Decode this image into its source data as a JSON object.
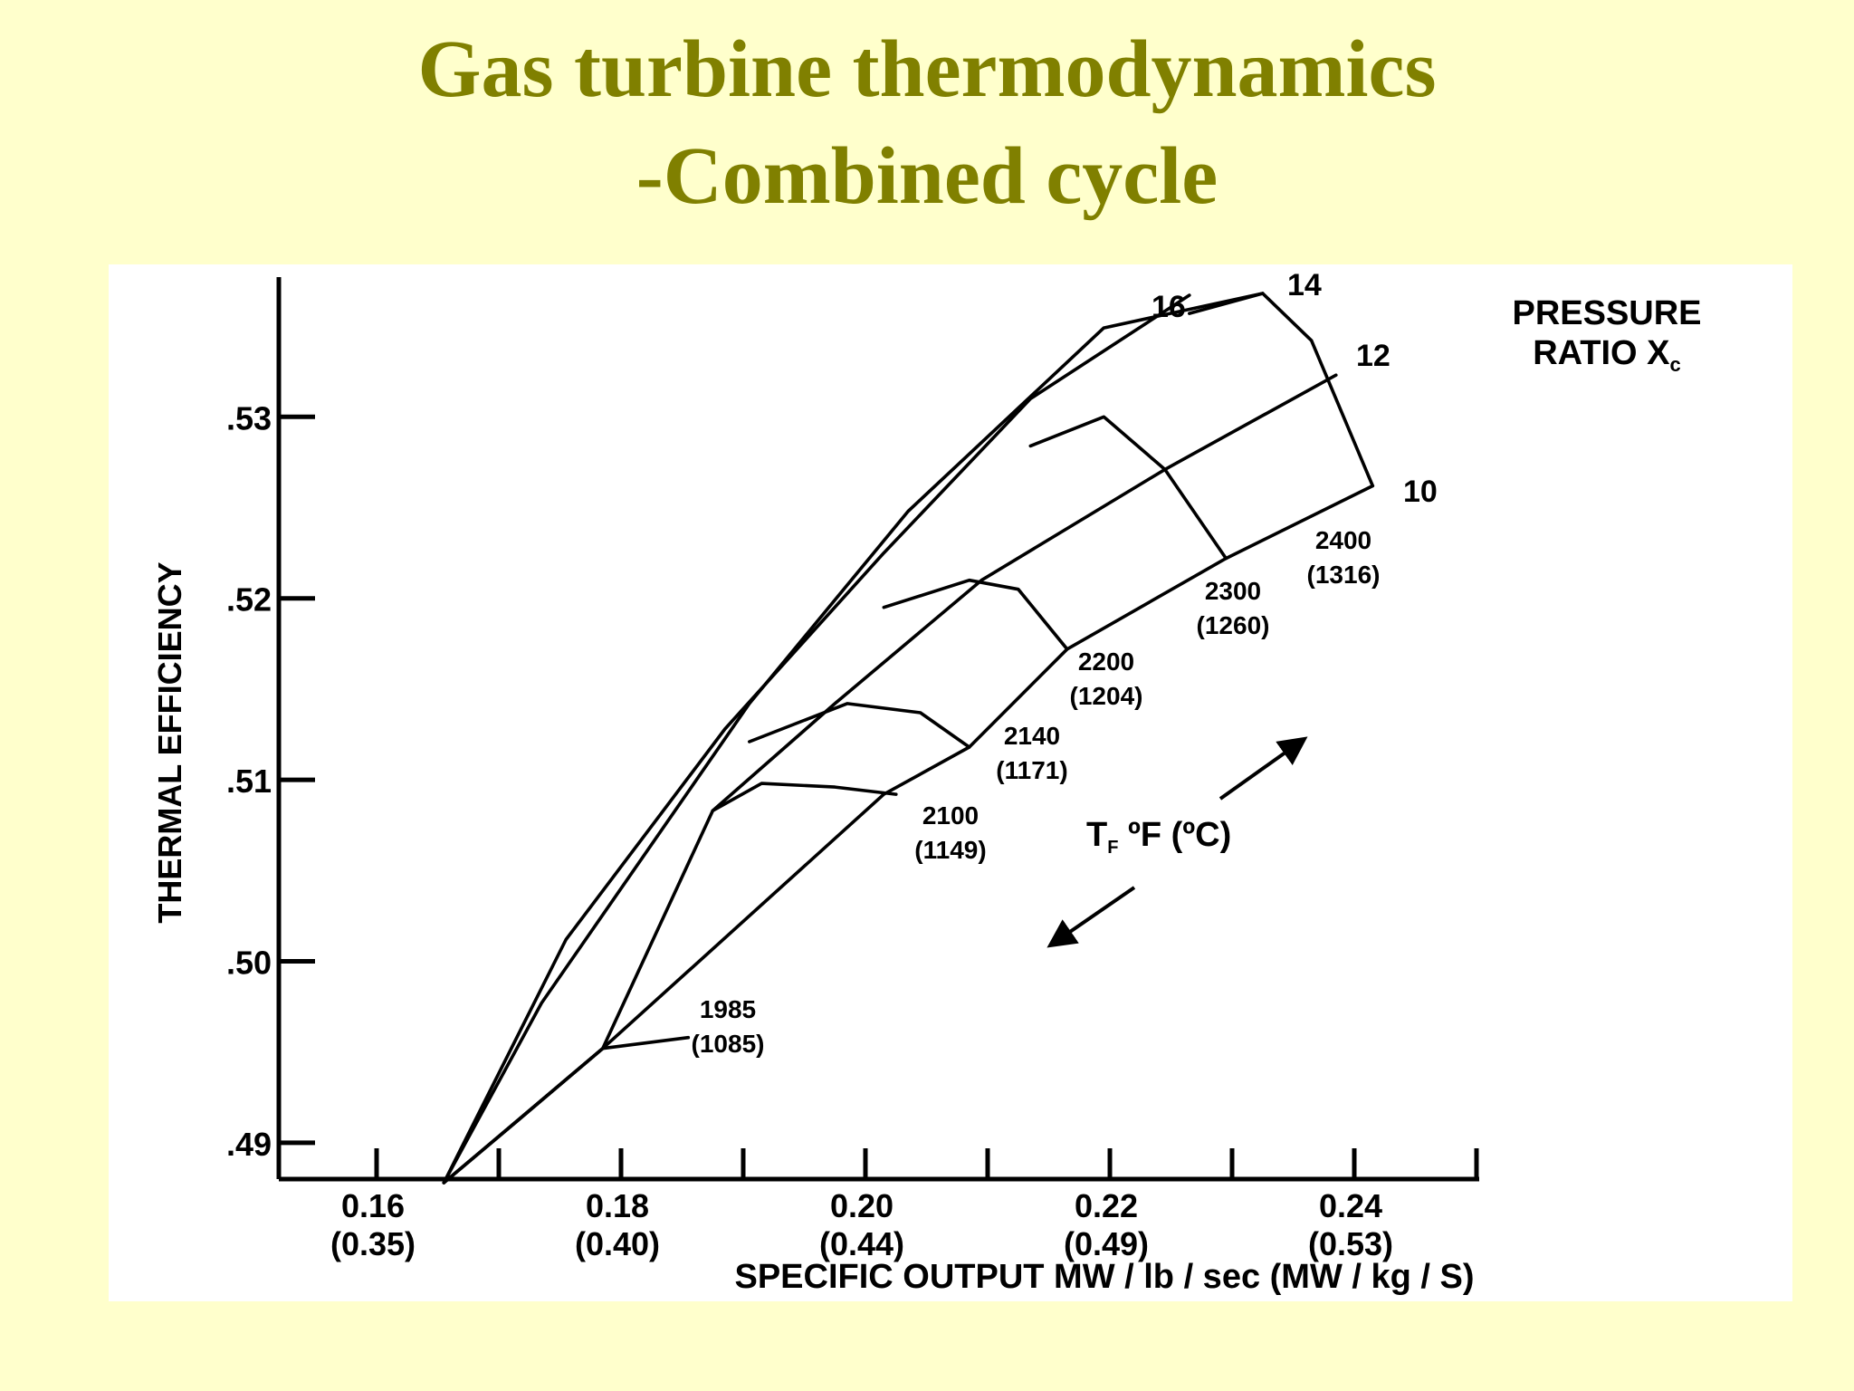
{
  "title": {
    "line1": "Gas turbine thermodynamics",
    "line2": "-Combined cycle"
  },
  "colors": {
    "background": "#ffffcc",
    "title": "#808000",
    "panel": "#ffffff",
    "ink": "#000000"
  },
  "chart_data": {
    "type": "line",
    "title": "",
    "xlabel": "SPECIFIC OUTPUT MW / lb / sec (MW / kg / S)",
    "ylabel": "THERMAL EFFICIENCY",
    "xlim": [
      0.152,
      0.25
    ],
    "ylim": [
      0.488,
      0.5375
    ],
    "grid": false,
    "x_ticks": [
      {
        "value": 0.16,
        "label": "0.16",
        "sublabel": "(0.35)"
      },
      {
        "value": 0.17,
        "label": "",
        "sublabel": ""
      },
      {
        "value": 0.18,
        "label": "0.18",
        "sublabel": "(0.40)"
      },
      {
        "value": 0.19,
        "label": "",
        "sublabel": ""
      },
      {
        "value": 0.2,
        "label": "0.20",
        "sublabel": "(0.44)"
      },
      {
        "value": 0.21,
        "label": "",
        "sublabel": ""
      },
      {
        "value": 0.22,
        "label": "0.22",
        "sublabel": "(0.49)"
      },
      {
        "value": 0.23,
        "label": "",
        "sublabel": ""
      },
      {
        "value": 0.24,
        "label": "0.24",
        "sublabel": "(0.53)"
      },
      {
        "value": 0.25,
        "label": "",
        "sublabel": ""
      }
    ],
    "y_ticks": [
      {
        "value": 0.49,
        "label": ".49"
      },
      {
        "value": 0.5,
        "label": ".50"
      },
      {
        "value": 0.51,
        "label": ".51"
      },
      {
        "value": 0.52,
        "label": ".52"
      },
      {
        "value": 0.53,
        "label": ".53"
      }
    ],
    "legend": {
      "line1": "PRESSURE",
      "line2": "RATIO X",
      "subscript": "c",
      "placement": "top-right"
    },
    "temperature_label": {
      "main": "T",
      "subscript": "F",
      "rest": " ºF (ºC)"
    },
    "pressure_ratio_lines": [
      {
        "label": "10",
        "points": [
          [
            0.1655,
            0.4878
          ],
          [
            0.1785,
            0.4952
          ],
          [
            0.2015,
            0.5092
          ],
          [
            0.2085,
            0.5118
          ],
          [
            0.2165,
            0.5172
          ],
          [
            0.2295,
            0.5222
          ],
          [
            0.2415,
            0.5262
          ]
        ]
      },
      {
        "label": "12",
        "points": [
          [
            0.1655,
            0.4878
          ],
          [
            0.1715,
            0.4912
          ],
          [
            0.1785,
            0.4952
          ],
          [
            0.1875,
            0.5083
          ],
          [
            0.1975,
            0.5142
          ],
          [
            0.2095,
            0.521
          ],
          [
            0.2245,
            0.5271
          ],
          [
            0.2385,
            0.5323
          ]
        ]
      },
      {
        "label": "14",
        "points": [
          [
            0.1655,
            0.4878
          ],
          [
            0.1735,
            0.4977
          ],
          [
            0.1905,
            0.5142
          ],
          [
            0.2035,
            0.5248
          ],
          [
            0.2195,
            0.5349
          ],
          [
            0.2325,
            0.5368
          ]
        ]
      },
      {
        "label": "16",
        "points": [
          [
            0.1655,
            0.4878
          ],
          [
            0.1755,
            0.5012
          ],
          [
            0.1885,
            0.5128
          ],
          [
            0.2015,
            0.5225
          ],
          [
            0.2135,
            0.531
          ],
          [
            0.2265,
            0.5367
          ]
        ]
      }
    ],
    "temperature_lines": [
      {
        "label": "1985",
        "sublabel": "(1085)",
        "points": [
          [
            0.1655,
            0.4878
          ],
          [
            0.1715,
            0.4912
          ],
          [
            0.1785,
            0.4952
          ],
          [
            0.1855,
            0.4958
          ]
        ]
      },
      {
        "label": "2100",
        "sublabel": "(1149)",
        "points": [
          [
            0.1875,
            0.5083
          ],
          [
            0.1915,
            0.5098
          ],
          [
            0.1975,
            0.5096
          ],
          [
            0.2025,
            0.5092
          ]
        ]
      },
      {
        "label": "2140",
        "sublabel": "(1171)",
        "points": [
          [
            0.1905,
            0.5121
          ],
          [
            0.1985,
            0.5142
          ],
          [
            0.2045,
            0.5137
          ],
          [
            0.2085,
            0.5118
          ]
        ]
      },
      {
        "label": "2200",
        "sublabel": "(1204)",
        "points": [
          [
            0.2015,
            0.5195
          ],
          [
            0.2085,
            0.521
          ],
          [
            0.2125,
            0.5205
          ],
          [
            0.2165,
            0.5172
          ]
        ]
      },
      {
        "label": "2300",
        "sublabel": "(1260)",
        "points": [
          [
            0.2135,
            0.5284
          ],
          [
            0.2195,
            0.53
          ],
          [
            0.2245,
            0.5271
          ],
          [
            0.2295,
            0.5222
          ]
        ]
      },
      {
        "label": "2400",
        "sublabel": "(1316)",
        "points": [
          [
            0.2265,
            0.5357
          ],
          [
            0.2325,
            0.5368
          ],
          [
            0.2365,
            0.5342
          ],
          [
            0.2415,
            0.5262
          ]
        ]
      }
    ],
    "arrows": [
      "up-right",
      "down-left"
    ]
  }
}
